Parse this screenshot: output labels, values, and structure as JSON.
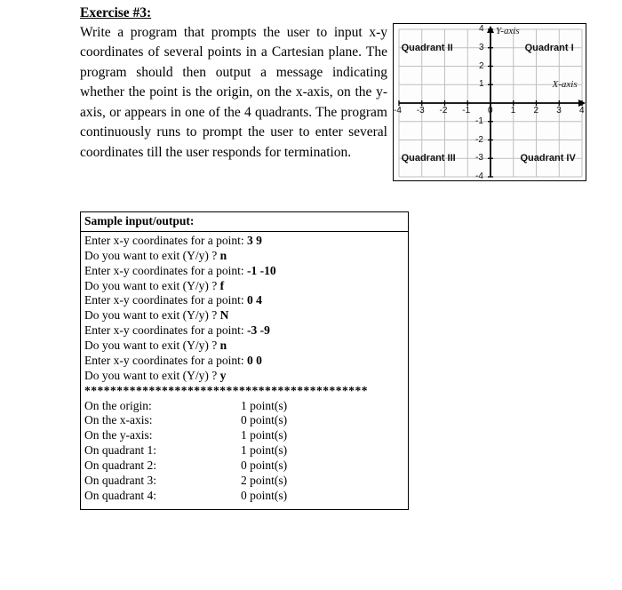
{
  "heading": "Exercise #3:",
  "body": "Write a program that prompts the user to input x-y coordinates of several points in a Cartesian plane. The program should then output a message indicating whether the point is the origin, on the x-axis, on the y-axis, or appears in one of the 4 quadrants. The program continuously runs to prompt the user to enter several coordinates till the user responds for termination.",
  "graph": {
    "quadrants": {
      "q1": "Quadrant I",
      "q2": "Quadrant II",
      "q3": "Quadrant III",
      "q4": "Quadrant IV"
    },
    "axes": {
      "x": "X-axis",
      "y": "Y-axis"
    },
    "xrange": [
      -4,
      4
    ],
    "yrange": [
      -4,
      4
    ],
    "tick_step": 1,
    "grid_color": "#bfbfbf",
    "axis_color": "#000000",
    "background_color": "#fdfdfd"
  },
  "sample": {
    "header": "Sample input/output:",
    "lines": [
      {
        "prompt": "Enter x-y coordinates for a point: ",
        "answer": "3  9"
      },
      {
        "prompt": "Do you want to exit (Y/y) ? ",
        "answer": "n"
      },
      {
        "prompt": "Enter x-y coordinates for a point: ",
        "answer": "-1  -10"
      },
      {
        "prompt": "Do you want to exit (Y/y) ? ",
        "answer": "f"
      },
      {
        "prompt": "Enter x-y coordinates for a point: ",
        "answer": "0  4"
      },
      {
        "prompt": "Do you want to exit (Y/y) ? ",
        "answer": "N"
      },
      {
        "prompt": "Enter x-y coordinates for a point: ",
        "answer": "-3  -9"
      },
      {
        "prompt": "Do you want to exit (Y/y) ? ",
        "answer": "n"
      },
      {
        "prompt": "Enter x-y coordinates for a point: ",
        "answer": "0  0"
      },
      {
        "prompt": "Do you want to exit (Y/y) ? ",
        "answer": "y"
      }
    ],
    "divider": "********************************************",
    "summary": [
      {
        "label": "On the origin:",
        "value": "1 point(s)"
      },
      {
        "label": "On the x-axis:",
        "value": "0 point(s)"
      },
      {
        "label": "On the y-axis:",
        "value": "1 point(s)"
      },
      {
        "label": "On quadrant 1:",
        "value": "1 point(s)"
      },
      {
        "label": "On quadrant 2:",
        "value": "0 point(s)"
      },
      {
        "label": "On quadrant 3:",
        "value": "2 point(s)"
      },
      {
        "label": "On quadrant 4:",
        "value": "0 point(s)"
      }
    ]
  }
}
